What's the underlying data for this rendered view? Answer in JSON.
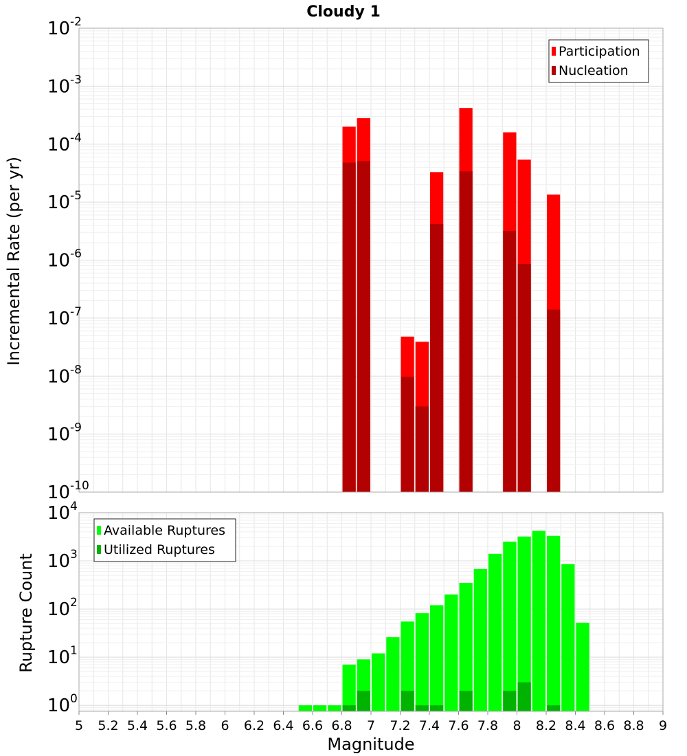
{
  "chart_data": [
    {
      "type": "bar",
      "title": "Cloudy 1",
      "xlabel": "",
      "ylabel": "Incremental Rate (per yr)",
      "yscale": "log",
      "xlim": [
        5,
        9
      ],
      "ylim": [
        1e-10,
        0.01
      ],
      "y_tick_exponents": [
        -10,
        -9,
        -8,
        -7,
        -6,
        -5,
        -4,
        -3,
        -2
      ],
      "y_tick_base": "10",
      "grid": true,
      "legend_position": "top-right",
      "series": [
        {
          "name": "Participation",
          "color": "#ff0000",
          "points": [
            {
              "x": 6.85,
              "y": 0.0002
            },
            {
              "x": 6.95,
              "y": 0.00028
            },
            {
              "x": 7.25,
              "y": 4.8e-08
            },
            {
              "x": 7.35,
              "y": 3.9e-08
            },
            {
              "x": 7.45,
              "y": 3.3e-05
            },
            {
              "x": 7.65,
              "y": 0.00042
            },
            {
              "x": 7.95,
              "y": 0.00016
            },
            {
              "x": 8.05,
              "y": 5.4e-05
            },
            {
              "x": 8.25,
              "y": 1.35e-05
            }
          ]
        },
        {
          "name": "Nucleation",
          "color": "#b30000",
          "points": [
            {
              "x": 6.85,
              "y": 4.8e-05
            },
            {
              "x": 6.95,
              "y": 5.1e-05
            },
            {
              "x": 7.25,
              "y": 9.7e-09
            },
            {
              "x": 7.35,
              "y": 3e-09
            },
            {
              "x": 7.45,
              "y": 4.2e-06
            },
            {
              "x": 7.65,
              "y": 3.4e-05
            },
            {
              "x": 7.95,
              "y": 3.2e-06
            },
            {
              "x": 8.05,
              "y": 8.6e-07
            },
            {
              "x": 8.25,
              "y": 1.4e-07
            }
          ]
        }
      ]
    },
    {
      "type": "bar",
      "title": "",
      "xlabel": "Magnitude",
      "ylabel": "Rupture Count",
      "yscale": "log",
      "xlim": [
        5,
        9
      ],
      "ylim": [
        0.75,
        10000.0
      ],
      "y_tick_exponents": [
        0,
        1,
        2,
        3,
        4
      ],
      "y_tick_base": "10",
      "x_ticks": [
        "5",
        "5.2",
        "5.4",
        "5.6",
        "5.8",
        "6",
        "6.2",
        "6.4",
        "6.6",
        "6.8",
        "7",
        "7.2",
        "7.4",
        "7.6",
        "7.8",
        "8",
        "8.2",
        "8.4",
        "8.6",
        "8.8",
        "9"
      ],
      "grid": true,
      "legend_position": "top-left",
      "series": [
        {
          "name": "Available Ruptures",
          "color": "#00ff00",
          "points": [
            {
              "x": 6.55,
              "y": 1
            },
            {
              "x": 6.65,
              "y": 1
            },
            {
              "x": 6.75,
              "y": 1
            },
            {
              "x": 6.85,
              "y": 7
            },
            {
              "x": 6.95,
              "y": 9
            },
            {
              "x": 7.05,
              "y": 12
            },
            {
              "x": 7.15,
              "y": 26
            },
            {
              "x": 7.25,
              "y": 55
            },
            {
              "x": 7.35,
              "y": 82
            },
            {
              "x": 7.45,
              "y": 120
            },
            {
              "x": 7.55,
              "y": 200
            },
            {
              "x": 7.65,
              "y": 350
            },
            {
              "x": 7.75,
              "y": 680
            },
            {
              "x": 7.85,
              "y": 1400
            },
            {
              "x": 7.95,
              "y": 2500
            },
            {
              "x": 8.05,
              "y": 3200
            },
            {
              "x": 8.15,
              "y": 4200
            },
            {
              "x": 8.25,
              "y": 3300
            },
            {
              "x": 8.35,
              "y": 850
            },
            {
              "x": 8.45,
              "y": 52
            }
          ]
        },
        {
          "name": "Utilized Ruptures",
          "color": "#00b300",
          "points": [
            {
              "x": 6.85,
              "y": 1
            },
            {
              "x": 6.95,
              "y": 2
            },
            {
              "x": 7.25,
              "y": 2
            },
            {
              "x": 7.35,
              "y": 1
            },
            {
              "x": 7.45,
              "y": 1
            },
            {
              "x": 7.65,
              "y": 2
            },
            {
              "x": 7.95,
              "y": 2
            },
            {
              "x": 8.05,
              "y": 3
            },
            {
              "x": 8.25,
              "y": 1
            }
          ]
        }
      ]
    }
  ]
}
